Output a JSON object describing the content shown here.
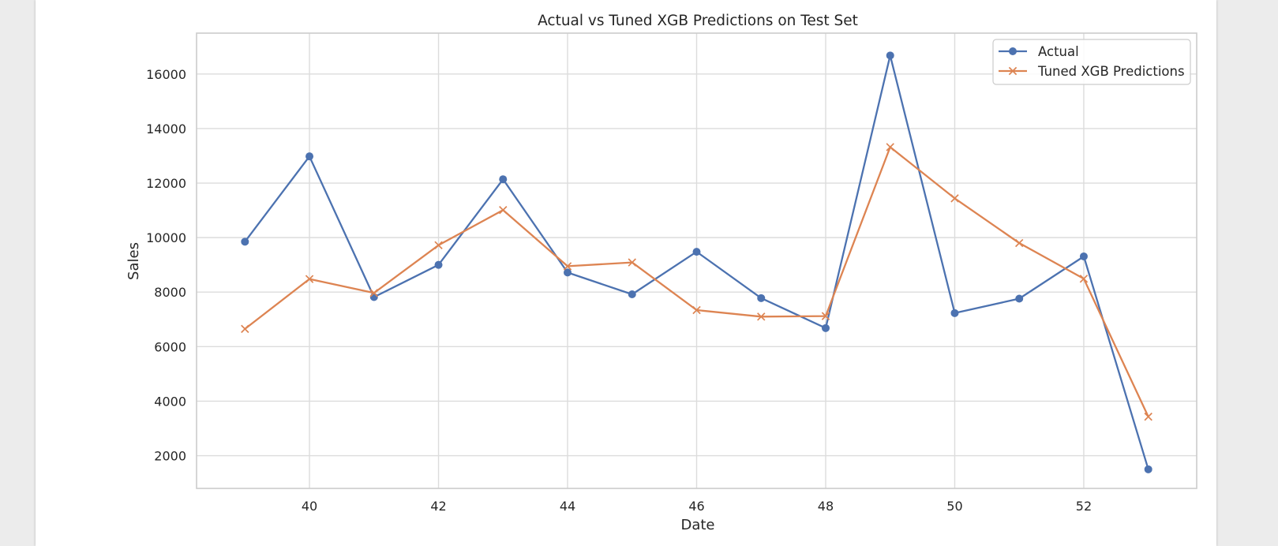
{
  "chart_data": {
    "type": "line",
    "title": "Actual vs Tuned XGB Predictions on Test Set",
    "xlabel": "Date",
    "ylabel": "Sales",
    "xlim": [
      38.25,
      53.75
    ],
    "ylim": [
      800,
      17500
    ],
    "xticks": [
      40,
      42,
      44,
      46,
      48,
      50,
      52
    ],
    "yticks": [
      2000,
      4000,
      6000,
      8000,
      10000,
      12000,
      14000,
      16000
    ],
    "grid": true,
    "legend_position": "top-right",
    "x": [
      39,
      40,
      41,
      42,
      43,
      44,
      45,
      46,
      47,
      48,
      49,
      50,
      51,
      52,
      53
    ],
    "series": [
      {
        "name": "Actual",
        "color": "#4c72b0",
        "marker": "circle",
        "values": [
          9850,
          12980,
          7820,
          9000,
          12140,
          8720,
          7920,
          9480,
          7780,
          6680,
          16680,
          7230,
          7760,
          9310,
          1500
        ]
      },
      {
        "name": "Tuned XGB Predictions",
        "color": "#dd8452",
        "marker": "x",
        "values": [
          6650,
          8480,
          7970,
          9720,
          11010,
          8950,
          9090,
          7340,
          7100,
          7120,
          13320,
          11440,
          9800,
          8490,
          3430
        ]
      }
    ]
  }
}
